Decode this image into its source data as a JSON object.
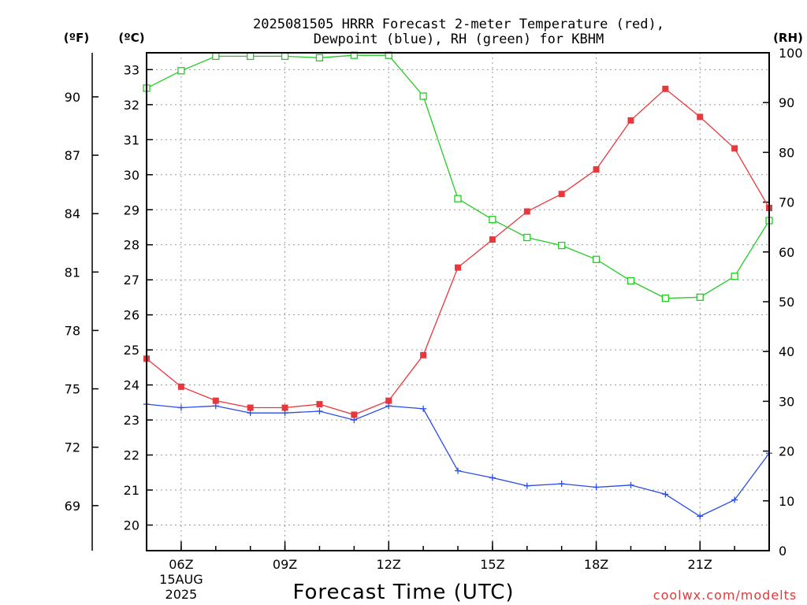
{
  "chart_data": {
    "type": "line",
    "title_line1": "2025081505 HRRR Forecast 2-meter Temperature (red),",
    "title_line2": "Dewpoint (blue), RH (green) for KBHM",
    "xlabel": "Forecast Time (UTC)",
    "credit": "coolwx.com/modelts",
    "units": {
      "fahrenheit": "(ºF)",
      "celsius": "(ºC)",
      "rh": "(RH)"
    },
    "x_hours": [
      5,
      6,
      7,
      8,
      9,
      10,
      11,
      12,
      13,
      14,
      15,
      16,
      17,
      18,
      19,
      20,
      21,
      22,
      23
    ],
    "x_range": [
      5,
      23
    ],
    "x_ticks": [
      {
        "hour": 6,
        "label": "06Z",
        "sub1": "15AUG",
        "sub2": "2025"
      },
      {
        "hour": 9,
        "label": "09Z"
      },
      {
        "hour": 12,
        "label": "12Z"
      },
      {
        "hour": 15,
        "label": "15Z"
      },
      {
        "hour": 18,
        "label": "18Z"
      },
      {
        "hour": 21,
        "label": "21Z"
      }
    ],
    "celsius_range": [
      19.27,
      33.48
    ],
    "celsius_ticks": [
      20,
      21,
      22,
      23,
      24,
      25,
      26,
      27,
      28,
      29,
      30,
      31,
      32,
      33
    ],
    "fahrenheit_ticks": [
      69,
      72,
      75,
      78,
      81,
      84,
      87,
      90
    ],
    "rh_range": [
      0,
      100
    ],
    "rh_ticks": [
      0,
      10,
      20,
      30,
      40,
      50,
      60,
      70,
      80,
      90,
      100
    ],
    "series": [
      {
        "name": "Temperature",
        "axis": "celsius",
        "color": "#e8383c",
        "marker": "filled-square",
        "values": [
          24.75,
          23.95,
          23.55,
          23.35,
          23.35,
          23.45,
          23.15,
          23.55,
          24.85,
          27.35,
          28.15,
          28.95,
          29.45,
          30.15,
          31.55,
          32.45,
          31.65,
          30.75,
          29.05
        ]
      },
      {
        "name": "Dewpoint",
        "axis": "celsius",
        "color": "#2b4be8",
        "marker": "plus",
        "values": [
          23.45,
          23.35,
          23.4,
          23.2,
          23.2,
          23.25,
          23.0,
          23.4,
          23.32,
          21.55,
          21.35,
          21.12,
          21.18,
          21.08,
          21.14,
          20.88,
          20.25,
          20.72,
          22.05
        ]
      },
      {
        "name": "RH",
        "axis": "rh",
        "color": "#22cc22",
        "marker": "open-square",
        "values": [
          92.9,
          96.4,
          99.3,
          99.3,
          99.3,
          99.0,
          99.5,
          99.5,
          91.3,
          70.7,
          66.5,
          62.9,
          61.3,
          58.5,
          54.2,
          50.7,
          50.9,
          55.1,
          66.3
        ]
      }
    ]
  }
}
